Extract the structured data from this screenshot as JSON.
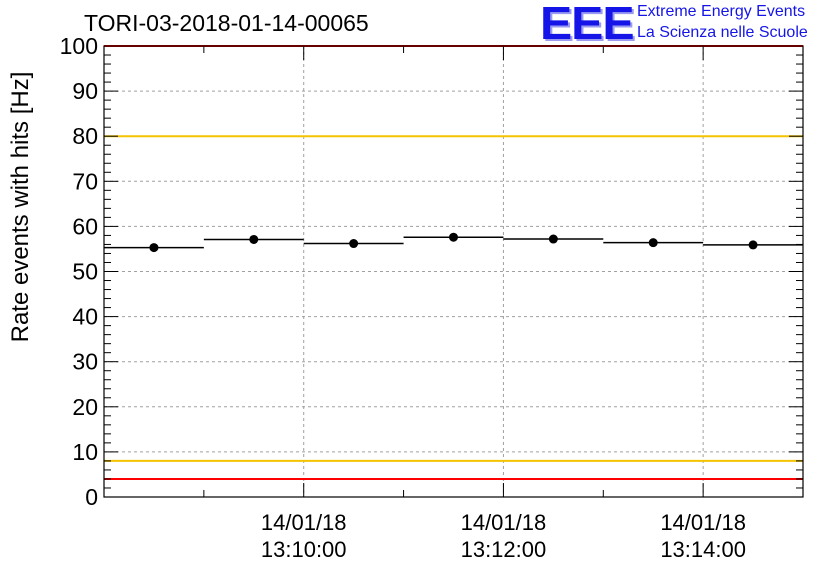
{
  "title": "TORI-03-2018-01-14-00065",
  "logo": {
    "mark": "EEE",
    "line1": "Extreme Energy Events",
    "line2": "La Scienza nelle Scuole",
    "color": "#1515e8"
  },
  "chart_data": {
    "type": "scatter",
    "title": "TORI-03-2018-01-14-00065",
    "ylabel": "Rate events with hits [Hz]",
    "xlabel": "",
    "ylim": [
      0,
      100
    ],
    "yticks": [
      0,
      10,
      20,
      30,
      40,
      50,
      60,
      70,
      80,
      90,
      100
    ],
    "xlim_minutes": [
      13.0,
      20.0
    ],
    "xticks": [
      {
        "date": "14/01/18",
        "time": "13:10:00"
      },
      {
        "date": "14/01/18",
        "time": "13:12:00"
      },
      {
        "date": "14/01/18",
        "time": "13:14:00"
      }
    ],
    "grid": true,
    "points": [
      {
        "x_start": "13:08:00",
        "x_end": "13:09:00",
        "y": 55.3
      },
      {
        "x_start": "13:09:00",
        "x_end": "13:10:00",
        "y": 57.1
      },
      {
        "x_start": "13:10:00",
        "x_end": "13:11:00",
        "y": 56.2
      },
      {
        "x_start": "13:11:00",
        "x_end": "13:12:00",
        "y": 57.6
      },
      {
        "x_start": "13:12:00",
        "x_end": "13:13:00",
        "y": 57.2
      },
      {
        "x_start": "13:13:00",
        "x_end": "13:14:00",
        "y": 56.4
      },
      {
        "x_start": "13:14:00",
        "x_end": "13:15:00",
        "y": 55.9
      }
    ],
    "reference_lines": [
      {
        "y": 100,
        "color": "#ff0000"
      },
      {
        "y": 80,
        "color": "#f5c400"
      },
      {
        "y": 8,
        "color": "#f5c400"
      },
      {
        "y": 4,
        "color": "#ff0000"
      }
    ]
  }
}
